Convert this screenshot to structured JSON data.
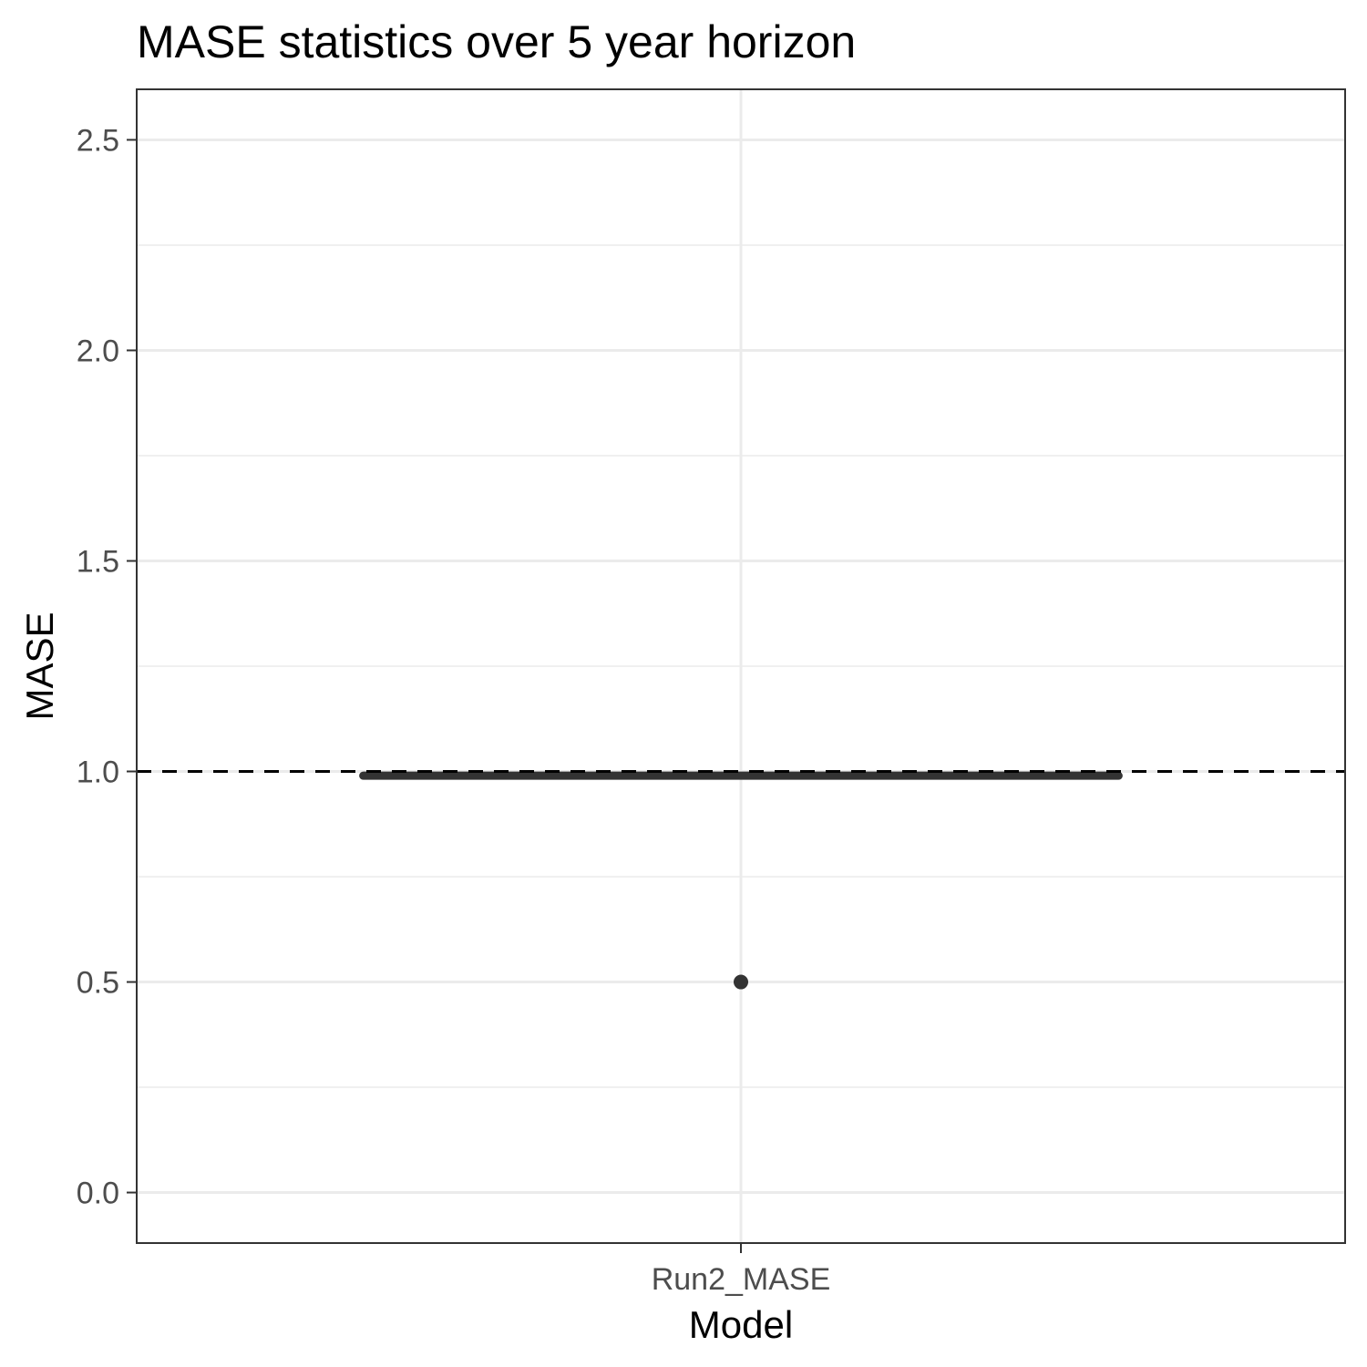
{
  "chart_data": {
    "type": "boxplot",
    "title": "MASE statistics over 5 year horizon",
    "xlabel": "Model",
    "ylabel": "MASE",
    "categories": [
      "Run2_MASE"
    ],
    "ylim": [
      -0.12,
      2.62
    ],
    "yticks": [
      0.0,
      0.5,
      1.0,
      1.5,
      2.0,
      2.5
    ],
    "ytick_labels": [
      "0.0",
      "0.5",
      "1.0",
      "1.5",
      "2.0",
      "2.5"
    ],
    "grid": true,
    "legend": "none",
    "boxes": [
      {
        "category": "Run2_MASE",
        "q1": 0.99,
        "median": 0.99,
        "q3": 0.99,
        "whisker_low": 0.99,
        "whisker_high": 0.99,
        "outliers": [
          0.5
        ]
      }
    ],
    "reference_lines": [
      {
        "y": 1.0,
        "style": "dashed",
        "color": "#000000"
      }
    ],
    "colors": {
      "box": "#333333",
      "grid": "#ebebeb",
      "frame": "#333333"
    }
  }
}
